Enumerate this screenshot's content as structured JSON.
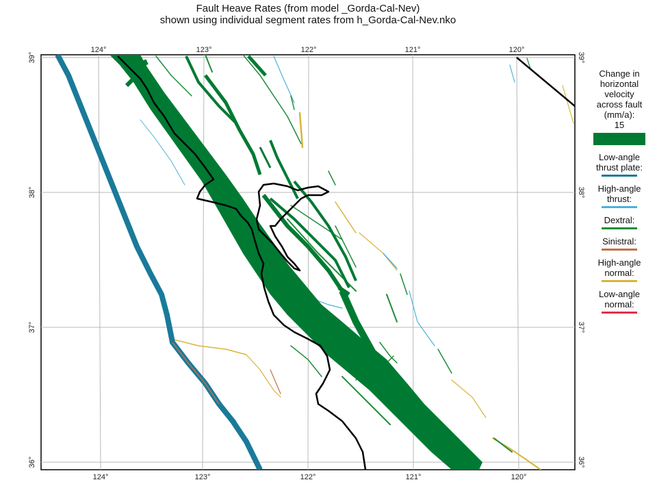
{
  "title": {
    "line1": "Fault Heave Rates (from model _Gorda-Cal-Nev)",
    "line2": "shown using individual segment rates from h_Gorda-Cal-Nev.nko"
  },
  "axes": {
    "lon_labels": [
      "124°",
      "123°",
      "122°",
      "121°",
      "120°"
    ],
    "lat_labels": [
      "39°",
      "38°",
      "37°",
      "36°"
    ]
  },
  "legend": {
    "title": "Change in\nhorizontal\nvelocity\nacross fault\n(mm/a):",
    "scale_value": "15",
    "scale_color": "#007a33",
    "items": [
      {
        "label": "Low-angle\nthrust plate:",
        "color": "#1a7a9a"
      },
      {
        "label": "High-angle\nthrust:",
        "color": "#4bb3d8"
      },
      {
        "label": "Dextral:",
        "color": "#1e8c3a"
      },
      {
        "label": "Sinistral:",
        "color": "#c0704a"
      },
      {
        "label": "High-angle\nnormal:",
        "color": "#d9b43a"
      },
      {
        "label": "Low-angle\nnormal:",
        "color": "#e0304a"
      }
    ]
  },
  "colors": {
    "coastline": "#000000",
    "plate_boundary": "#1a7a9a",
    "dextral": "#007a33",
    "grid": "#b8b8b8"
  }
}
